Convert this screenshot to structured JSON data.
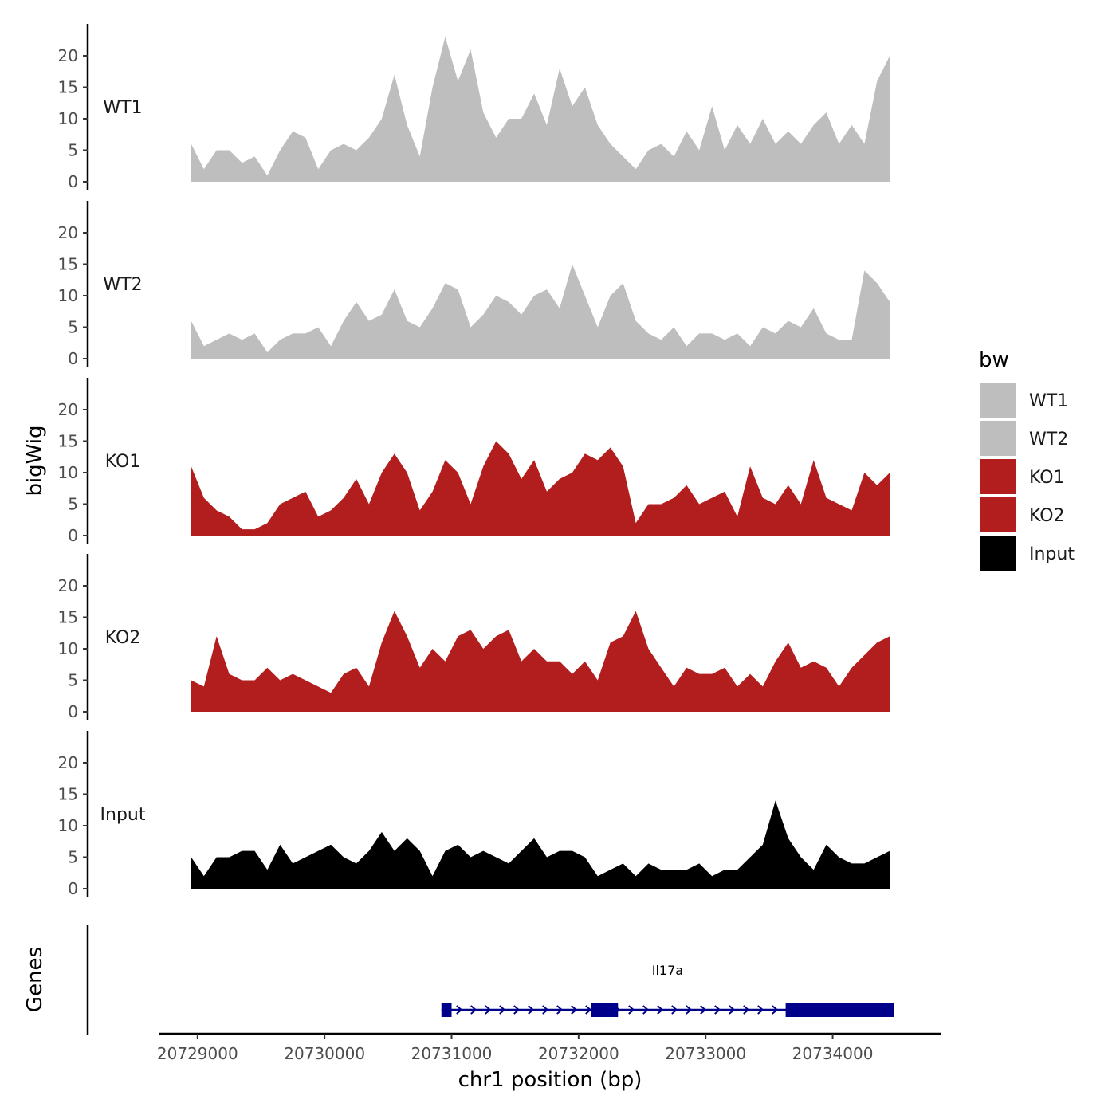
{
  "chart_data": {
    "type": "area",
    "ylabel": "bigWig",
    "xlabel": "chr1 position (bp)",
    "genes_label": "Genes",
    "ylim": [
      0,
      25
    ],
    "yticks": [
      0,
      5,
      10,
      15,
      20
    ],
    "xlim": [
      20728700,
      20734850
    ],
    "xticks": [
      20729000,
      20730000,
      20731000,
      20732000,
      20733000,
      20734000
    ],
    "x": [
      20728950,
      20729050,
      20729150,
      20729250,
      20729350,
      20729450,
      20729550,
      20729650,
      20729750,
      20729850,
      20729950,
      20730050,
      20730150,
      20730250,
      20730350,
      20730450,
      20730550,
      20730650,
      20730750,
      20730850,
      20730950,
      20731050,
      20731150,
      20731250,
      20731350,
      20731450,
      20731550,
      20731650,
      20731750,
      20731850,
      20731950,
      20732050,
      20732150,
      20732250,
      20732350,
      20732450,
      20732550,
      20732650,
      20732750,
      20732850,
      20732950,
      20733050,
      20733150,
      20733250,
      20733350,
      20733450,
      20733550,
      20733650,
      20733750,
      20733850,
      20733950,
      20734050,
      20734150,
      20734250,
      20734350,
      20734450
    ],
    "series": [
      {
        "name": "WT1",
        "color": "#bebebe",
        "values": [
          6,
          2,
          5,
          5,
          3,
          4,
          1,
          5,
          8,
          7,
          2,
          5,
          6,
          5,
          7,
          10,
          17,
          9,
          4,
          15,
          23,
          16,
          21,
          11,
          7,
          10,
          10,
          14,
          9,
          18,
          12,
          15,
          9,
          6,
          4,
          2,
          5,
          6,
          4,
          8,
          5,
          12,
          5,
          9,
          6,
          10,
          6,
          8,
          6,
          9,
          11,
          6,
          9,
          6,
          16,
          20
        ]
      },
      {
        "name": "WT2",
        "color": "#bebebe",
        "values": [
          6,
          2,
          3,
          4,
          3,
          4,
          1,
          3,
          4,
          4,
          5,
          2,
          6,
          9,
          6,
          7,
          11,
          6,
          5,
          8,
          12,
          11,
          5,
          7,
          10,
          9,
          7,
          10,
          11,
          8,
          15,
          10,
          5,
          10,
          12,
          6,
          4,
          3,
          5,
          2,
          4,
          4,
          3,
          4,
          2,
          5,
          4,
          6,
          5,
          8,
          4,
          3,
          3,
          14,
          12,
          9
        ]
      },
      {
        "name": "KO1",
        "color": "#b21e1e",
        "values": [
          11,
          6,
          4,
          3,
          1,
          1,
          2,
          5,
          6,
          7,
          3,
          4,
          6,
          9,
          5,
          10,
          13,
          10,
          4,
          7,
          12,
          10,
          5,
          11,
          15,
          13,
          9,
          12,
          7,
          9,
          10,
          13,
          12,
          14,
          11,
          2,
          5,
          5,
          6,
          8,
          5,
          6,
          7,
          3,
          11,
          6,
          5,
          8,
          5,
          12,
          6,
          5,
          4,
          10,
          8,
          10
        ]
      },
      {
        "name": "KO2",
        "color": "#b21e1e",
        "values": [
          5,
          4,
          12,
          6,
          5,
          5,
          7,
          5,
          6,
          5,
          4,
          3,
          6,
          7,
          4,
          11,
          16,
          12,
          7,
          10,
          8,
          12,
          13,
          10,
          12,
          13,
          8,
          10,
          8,
          8,
          6,
          8,
          5,
          11,
          12,
          16,
          10,
          7,
          4,
          7,
          6,
          6,
          7,
          4,
          6,
          4,
          8,
          11,
          7,
          8,
          7,
          4,
          7,
          9,
          11,
          12
        ]
      },
      {
        "name": "Input",
        "color": "#000000",
        "values": [
          5,
          2,
          5,
          5,
          6,
          6,
          3,
          7,
          4,
          5,
          6,
          7,
          5,
          4,
          6,
          9,
          6,
          8,
          6,
          2,
          6,
          7,
          5,
          6,
          5,
          4,
          6,
          8,
          5,
          6,
          6,
          5,
          2,
          3,
          4,
          2,
          4,
          3,
          3,
          3,
          4,
          2,
          3,
          3,
          5,
          7,
          14,
          8,
          5,
          3,
          7,
          5,
          4,
          4,
          5,
          6
        ]
      }
    ],
    "genes": [
      {
        "name": "Il17a",
        "strand": "+",
        "start": 20730920,
        "end": 20734480,
        "exons": [
          [
            20730920,
            20731000
          ],
          [
            20732100,
            20732310
          ],
          [
            20733630,
            20734480
          ]
        ],
        "color": "#00008b"
      }
    ],
    "legend": {
      "title": "bw",
      "position": "right",
      "entries": [
        {
          "label": "WT1",
          "color": "#bebebe"
        },
        {
          "label": "WT2",
          "color": "#bebebe"
        },
        {
          "label": "KO1",
          "color": "#b21e1e"
        },
        {
          "label": "KO2",
          "color": "#b21e1e"
        },
        {
          "label": "Input",
          "color": "#000000"
        }
      ]
    },
    "grid": false
  }
}
